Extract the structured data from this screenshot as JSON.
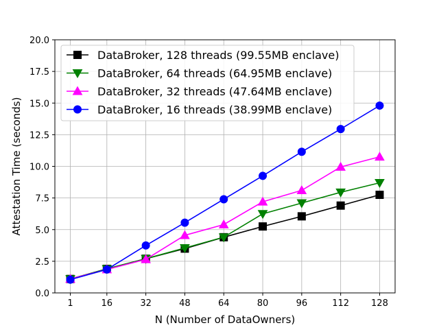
{
  "chart_data": {
    "type": "line",
    "xlabel": "N (Number of DataOwners)",
    "ylabel": "Attestation Time (seconds)",
    "x": [
      1,
      16,
      32,
      48,
      64,
      80,
      96,
      112,
      128
    ],
    "x_ticks": [
      "1",
      "16",
      "32",
      "48",
      "64",
      "80",
      "96",
      "112",
      "128"
    ],
    "y_ticks": [
      "0.0",
      "2.5",
      "5.0",
      "7.5",
      "10.0",
      "12.5",
      "15.0",
      "17.5",
      "20.0"
    ],
    "ylim": [
      0,
      20
    ],
    "grid": true,
    "legend_position": "top-left",
    "series": [
      {
        "name": "DataBroker, 128 threads (99.55MB enclave)",
        "color": "#000000",
        "marker": "square",
        "values": [
          1.1,
          1.9,
          2.7,
          3.5,
          4.4,
          5.25,
          6.05,
          6.9,
          7.75
        ]
      },
      {
        "name": "DataBroker, 64 threads  (64.95MB enclave)",
        "color": "#008000",
        "marker": "triangle-down",
        "values": [
          1.1,
          1.9,
          2.7,
          3.55,
          4.4,
          6.25,
          7.1,
          7.95,
          8.7
        ]
      },
      {
        "name": "DataBroker, 32 threads  (47.64MB enclave)",
        "color": "#ff00ff",
        "marker": "triangle-up",
        "values": [
          1.1,
          1.85,
          2.65,
          4.55,
          5.4,
          7.2,
          8.1,
          9.95,
          10.75
        ]
      },
      {
        "name": "DataBroker, 16 threads  (38.99MB enclave)",
        "color": "#0000ff",
        "marker": "circle",
        "values": [
          1.05,
          1.85,
          3.75,
          5.55,
          7.4,
          9.25,
          11.15,
          12.95,
          14.8
        ]
      }
    ]
  }
}
